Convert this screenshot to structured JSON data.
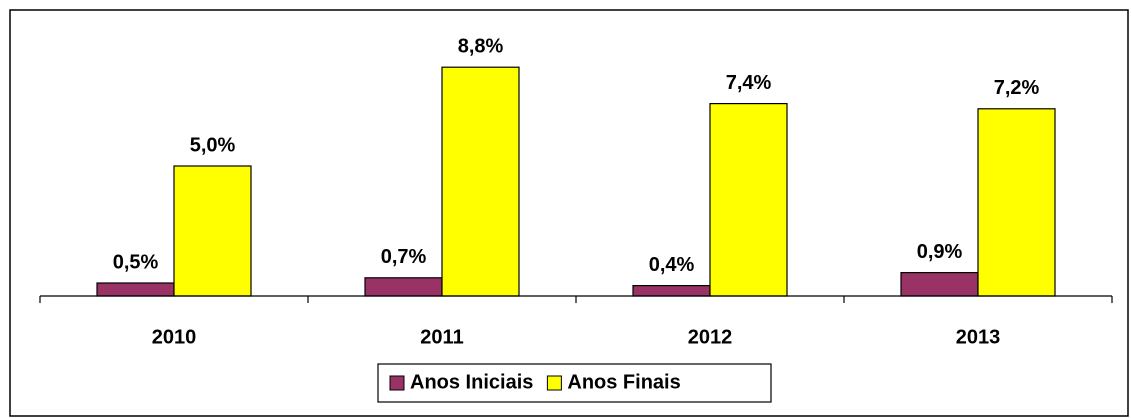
{
  "chart_data": {
    "type": "bar",
    "categories": [
      "2010",
      "2011",
      "2012",
      "2013"
    ],
    "series": [
      {
        "name": "Anos Iniciais",
        "color": "#993366",
        "values": [
          0.5,
          0.7,
          0.4,
          0.9
        ],
        "value_labels": [
          "0,5%",
          "0,7%",
          "0,4%",
          "0,9%"
        ]
      },
      {
        "name": "Anos Finais",
        "color": "#ffff00",
        "values": [
          5.0,
          8.8,
          7.4,
          7.2
        ],
        "value_labels": [
          "5,0%",
          "8,8%",
          "7,4%",
          "7,2%"
        ]
      }
    ],
    "ylim": [
      0,
      10
    ],
    "grid": false,
    "legend": "bottom"
  }
}
